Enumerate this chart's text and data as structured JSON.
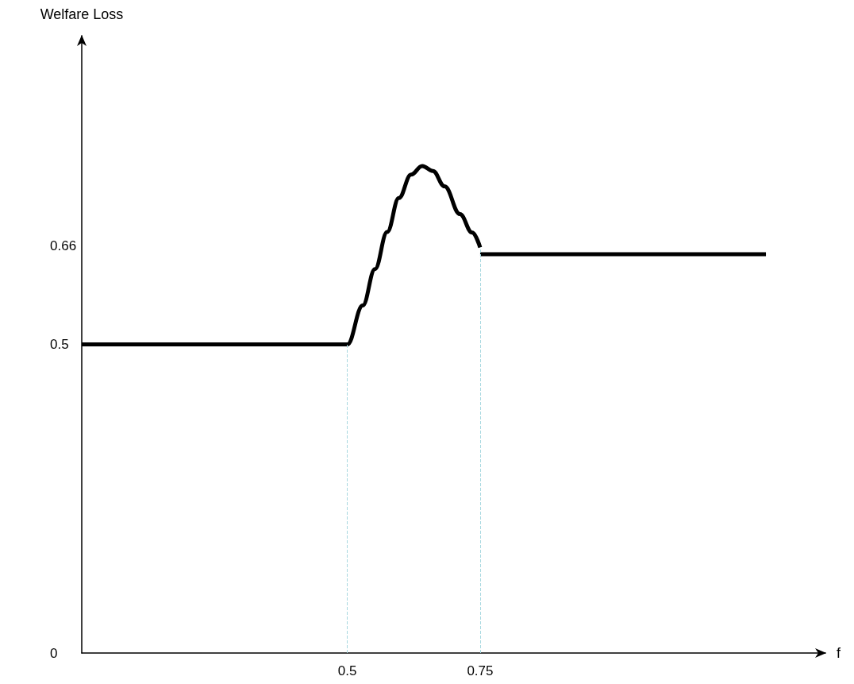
{
  "chart_data": {
    "type": "line",
    "xlabel": "f",
    "ylabel": "Welfare Loss",
    "xlim": [
      0,
      1.4
    ],
    "xticks": [
      0.5,
      0.75
    ],
    "ylim": [
      0,
      1
    ],
    "yticks": [
      0,
      0.5,
      0.66
    ],
    "grid": false,
    "marker": "none",
    "line_style": "solid",
    "series": [
      {
        "color": "#000000",
        "x": [
          0,
          0.5,
          0.529,
          0.552,
          0.575,
          0.597,
          0.62,
          0.641,
          0.661,
          0.683,
          0.712,
          0.735,
          0.75
        ],
        "values": [
          0.5,
          0.5,
          0.563,
          0.622,
          0.682,
          0.737,
          0.775,
          0.789,
          0.781,
          0.756,
          0.711,
          0.681,
          0.657
        ]
      },
      {
        "color": "#000000",
        "x": [
          0.75,
          1.288
        ],
        "values": [
          0.646,
          0.646
        ]
      }
    ],
    "ref_lines": [
      {
        "axis": "x",
        "value": 0.5,
        "color": "#a8d8e0",
        "line_style": "dashed"
      },
      {
        "axis": "x",
        "value": 0.75,
        "color": "#a8d8e0",
        "line_style": "dashed"
      }
    ]
  }
}
